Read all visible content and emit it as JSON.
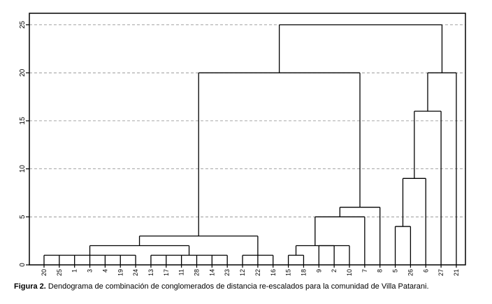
{
  "chart_data": {
    "type": "dendrogram",
    "y_axis": {
      "ylim": [
        0,
        26.2
      ],
      "ticks": [
        0,
        5,
        10,
        15,
        20,
        25
      ],
      "tick_labels": [
        "0",
        "5",
        "10",
        "15",
        "20",
        "25"
      ],
      "gridlines": "dashed at ticks"
    },
    "leaf_order": [
      "20",
      "25",
      "1",
      "3",
      "4",
      "19",
      "24",
      "13",
      "17",
      "11",
      "28",
      "14",
      "23",
      "12",
      "22",
      "16",
      "15",
      "18",
      "9",
      "2",
      "10",
      "7",
      "8",
      "5",
      "26",
      "6",
      "27",
      "21"
    ],
    "merges": [
      {
        "id": "A",
        "members": [
          "20",
          "25",
          "1",
          "3",
          "4",
          "19",
          "24"
        ],
        "height": 1
      },
      {
        "id": "B",
        "members": [
          "13",
          "17",
          "11",
          "28",
          "14",
          "23"
        ],
        "height": 1
      },
      {
        "id": "C",
        "members": [
          "A",
          "B"
        ],
        "height": 2
      },
      {
        "id": "D",
        "members": [
          "12",
          "22",
          "16"
        ],
        "height": 1
      },
      {
        "id": "E",
        "members": [
          "C",
          "D"
        ],
        "height": 3
      },
      {
        "id": "F",
        "members": [
          "15",
          "18"
        ],
        "height": 1
      },
      {
        "id": "G",
        "members": [
          "9",
          "2",
          "10"
        ],
        "height": 2
      },
      {
        "id": "H",
        "members": [
          "F",
          "G"
        ],
        "height": 2
      },
      {
        "id": "I",
        "members": [
          "H",
          "7"
        ],
        "height": 5
      },
      {
        "id": "J",
        "members": [
          "I",
          "8"
        ],
        "height": 6
      },
      {
        "id": "K",
        "members": [
          "E",
          "J"
        ],
        "height": 20
      },
      {
        "id": "L",
        "members": [
          "5",
          "26"
        ],
        "height": 4
      },
      {
        "id": "M",
        "members": [
          "L",
          "6"
        ],
        "height": 9
      },
      {
        "id": "N",
        "members": [
          "M",
          "27"
        ],
        "height": 16
      },
      {
        "id": "O",
        "members": [
          "N",
          "21"
        ],
        "height": 20
      },
      {
        "id": "P",
        "members": [
          "K",
          "O"
        ],
        "height": 25
      }
    ]
  },
  "caption": {
    "label": "Figura 2.",
    "text": " Dendograma de combinación de conglomerados de distancia re-escalados para la comunidad de Villa Patarani."
  }
}
